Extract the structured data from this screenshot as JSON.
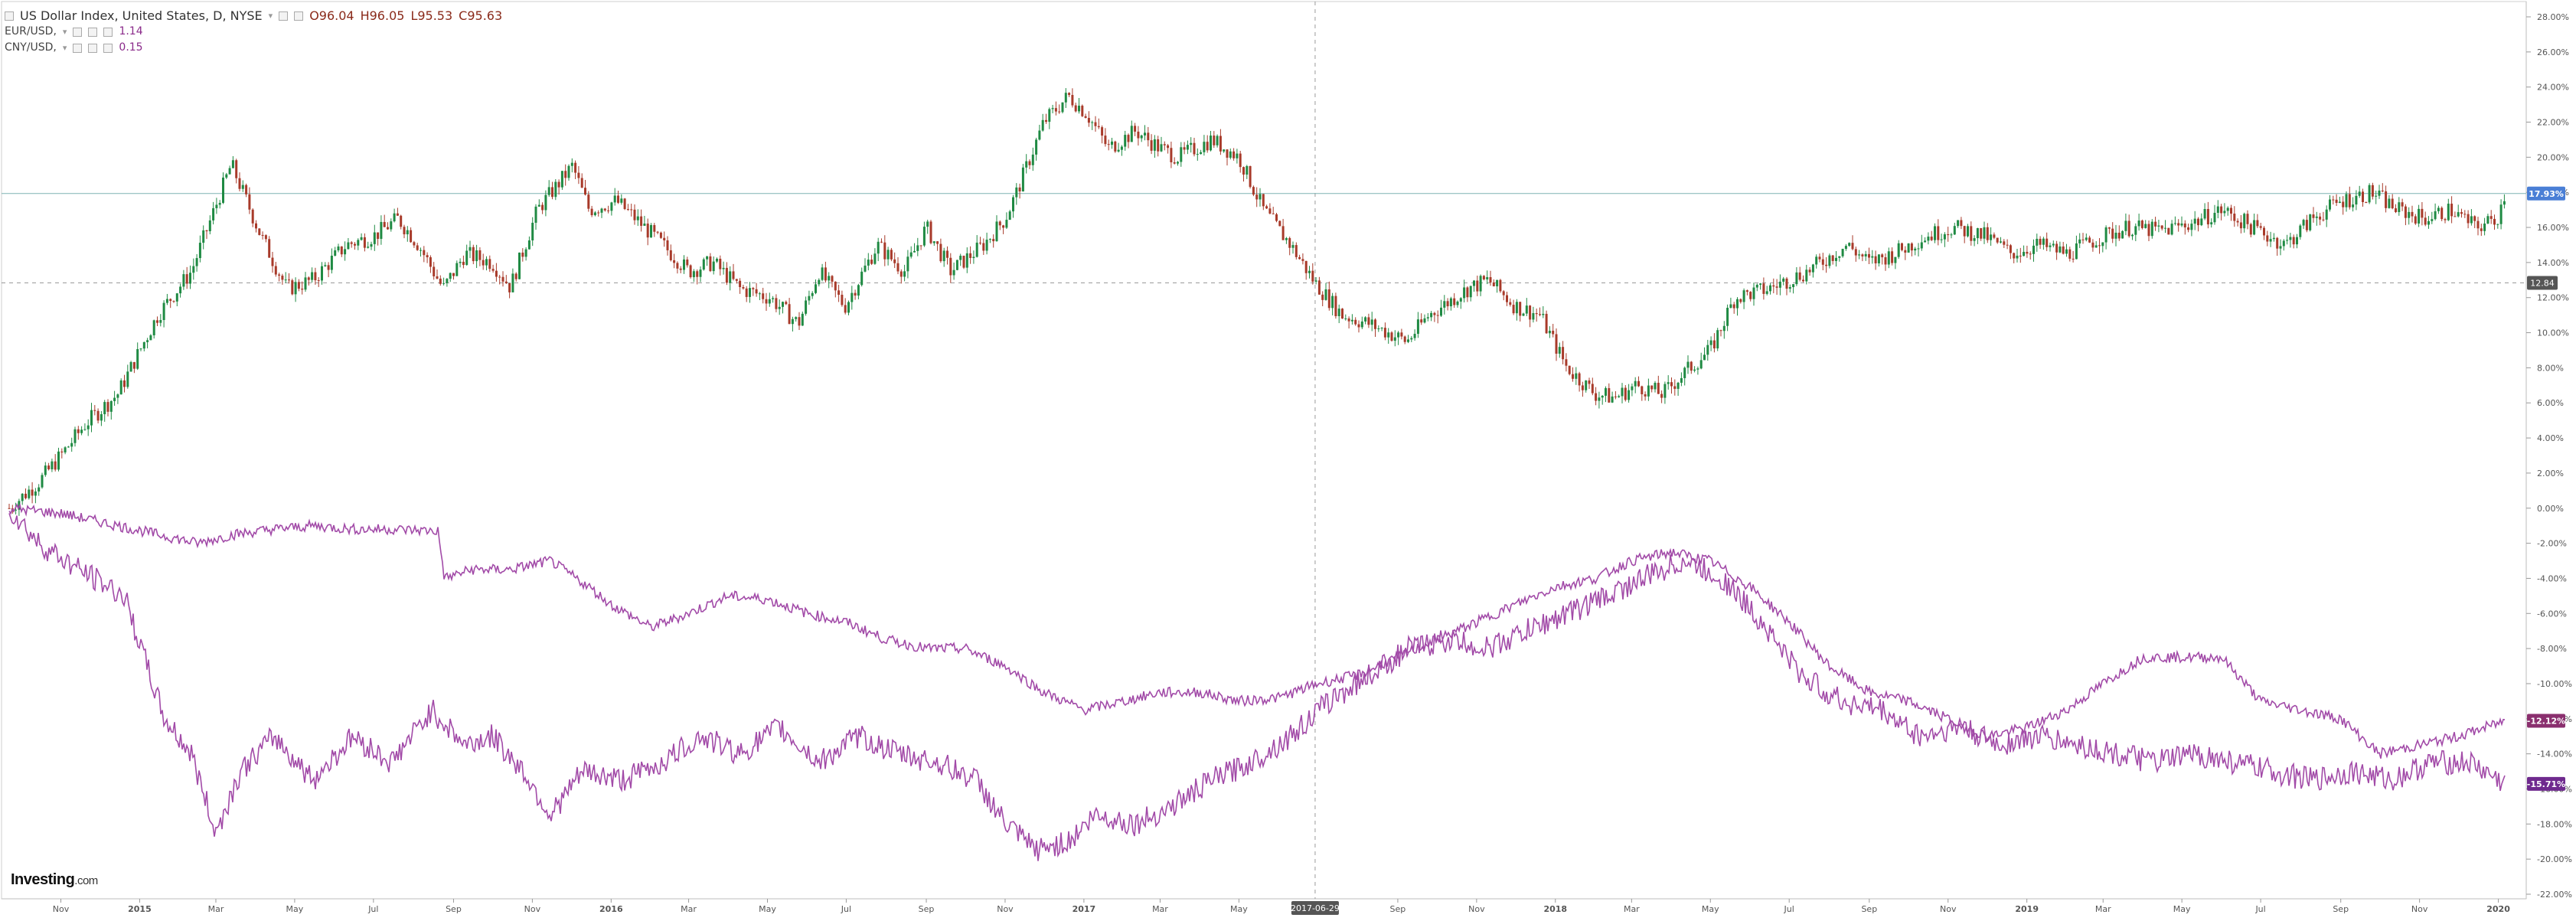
{
  "header": {
    "main_symbol": "US Dollar Index, United States, D, NYSE",
    "main_open": "O96.04",
    "main_high": "H96.05",
    "main_low": "L95.53",
    "main_close": "C95.63",
    "eur_symbol": "EUR/USD,",
    "eur_value": "1.14",
    "cny_symbol": "CNY/USD,",
    "cny_value": "0.15"
  },
  "branding": {
    "logo_text": "Investing",
    "logo_suffix": ".com"
  },
  "colors": {
    "candle_up": "#1f8a43",
    "candle_down": "#a83a2a",
    "compare_line": "#a24ba8",
    "eur_badge": "#8a2f6e",
    "cny_badge": "#6f2a8e",
    "main_badge": "#4a7fd6",
    "crosshair_badge": "#555555"
  },
  "chart_data": {
    "type": "line",
    "y_unit": "percent change",
    "ylim": [
      -22,
      28
    ],
    "y_ticks": [
      "28.00%",
      "26.00%",
      "24.00%",
      "22.00%",
      "20.00%",
      "18.00%",
      "16.00%",
      "14.00%",
      "12.00%",
      "10.00%",
      "8.00%",
      "6.00%",
      "4.00%",
      "2.00%",
      "0.00%",
      "-2.00%",
      "-4.00%",
      "-6.00%",
      "-8.00%",
      "-10.00%",
      "-12.00%",
      "-14.00%",
      "-16.00%",
      "-18.00%",
      "-20.00%",
      "-22.00%"
    ],
    "x_range": [
      "2014-09-22",
      "2020-01-06"
    ],
    "x_ticks": [
      {
        "date": "2014-11-01",
        "label": "Nov",
        "bold": false
      },
      {
        "date": "2015-01-01",
        "label": "2015",
        "bold": true
      },
      {
        "date": "2015-03-01",
        "label": "Mar",
        "bold": false
      },
      {
        "date": "2015-05-01",
        "label": "May",
        "bold": false
      },
      {
        "date": "2015-07-01",
        "label": "Jul",
        "bold": false
      },
      {
        "date": "2015-09-01",
        "label": "Sep",
        "bold": false
      },
      {
        "date": "2015-11-01",
        "label": "Nov",
        "bold": false
      },
      {
        "date": "2016-01-01",
        "label": "2016",
        "bold": true
      },
      {
        "date": "2016-03-01",
        "label": "Mar",
        "bold": false
      },
      {
        "date": "2016-05-01",
        "label": "May",
        "bold": false
      },
      {
        "date": "2016-07-01",
        "label": "Jul",
        "bold": false
      },
      {
        "date": "2016-09-01",
        "label": "Sep",
        "bold": false
      },
      {
        "date": "2016-11-01",
        "label": "Nov",
        "bold": false
      },
      {
        "date": "2017-01-01",
        "label": "2017",
        "bold": true
      },
      {
        "date": "2017-03-01",
        "label": "Mar",
        "bold": false
      },
      {
        "date": "2017-05-01",
        "label": "May",
        "bold": false
      },
      {
        "date": "2017-09-01",
        "label": "Sep",
        "bold": false
      },
      {
        "date": "2017-11-01",
        "label": "Nov",
        "bold": false
      },
      {
        "date": "2018-01-01",
        "label": "2018",
        "bold": true
      },
      {
        "date": "2018-03-01",
        "label": "Mar",
        "bold": false
      },
      {
        "date": "2018-05-01",
        "label": "May",
        "bold": false
      },
      {
        "date": "2018-07-01",
        "label": "Jul",
        "bold": false
      },
      {
        "date": "2018-09-01",
        "label": "Sep",
        "bold": false
      },
      {
        "date": "2018-11-01",
        "label": "Nov",
        "bold": false
      },
      {
        "date": "2019-01-01",
        "label": "2019",
        "bold": true
      },
      {
        "date": "2019-03-01",
        "label": "Mar",
        "bold": false
      },
      {
        "date": "2019-05-01",
        "label": "May",
        "bold": false
      },
      {
        "date": "2019-07-01",
        "label": "Jul",
        "bold": false
      },
      {
        "date": "2019-09-01",
        "label": "Sep",
        "bold": false
      },
      {
        "date": "2019-11-01",
        "label": "Nov",
        "bold": false
      },
      {
        "date": "2020-01-01",
        "label": "2020",
        "bold": true
      }
    ],
    "crosshair": {
      "date": "2017-06-29",
      "date_label": "2017-06-29",
      "value": 12.84,
      "value_label": "12.84"
    },
    "last_value_badges": [
      {
        "series": "US Dollar Index",
        "value": 17.93,
        "label": "17.93%"
      },
      {
        "series": "EUR/USD",
        "value": -12.12,
        "label": "-12.12%"
      },
      {
        "series": "CNY/USD",
        "value": -15.71,
        "label": "-15.71%"
      }
    ],
    "series": [
      {
        "name": "US Dollar Index",
        "style": "candlestick",
        "x": [
          "2014-09-22",
          "2014-10-15",
          "2014-11-01",
          "2014-11-20",
          "2014-12-15",
          "2015-01-15",
          "2015-02-10",
          "2015-03-13",
          "2015-04-05",
          "2015-04-25",
          "2015-05-15",
          "2015-06-10",
          "2015-07-01",
          "2015-07-20",
          "2015-08-05",
          "2015-08-24",
          "2015-09-10",
          "2015-10-01",
          "2015-10-15",
          "2015-11-05",
          "2015-12-02",
          "2015-12-15",
          "2016-01-05",
          "2016-01-20",
          "2016-02-10",
          "2016-03-01",
          "2016-03-20",
          "2016-04-10",
          "2016-05-03",
          "2016-05-25",
          "2016-06-10",
          "2016-06-30",
          "2016-07-25",
          "2016-08-15",
          "2016-09-01",
          "2016-09-20",
          "2016-10-15",
          "2016-11-01",
          "2016-11-10",
          "2016-12-01",
          "2016-12-20",
          "2017-01-03",
          "2017-01-20",
          "2017-02-10",
          "2017-03-01",
          "2017-03-15",
          "2017-04-10",
          "2017-05-01",
          "2017-05-20",
          "2017-06-10",
          "2017-06-29",
          "2017-07-20",
          "2017-08-10",
          "2017-09-08",
          "2017-09-25",
          "2017-10-25",
          "2017-11-10",
          "2017-12-01",
          "2017-12-20",
          "2018-01-10",
          "2018-02-01",
          "2018-02-16",
          "2018-03-05",
          "2018-03-25",
          "2018-04-15",
          "2018-05-01",
          "2018-05-20",
          "2018-06-15",
          "2018-07-15",
          "2018-08-15",
          "2018-09-01",
          "2018-09-20",
          "2018-10-15",
          "2018-11-05",
          "2018-11-30",
          "2018-12-20",
          "2019-01-10",
          "2019-02-01",
          "2019-03-01",
          "2019-03-20",
          "2019-04-15",
          "2019-05-10",
          "2019-06-01",
          "2019-06-25",
          "2019-07-20",
          "2019-08-10",
          "2019-09-01",
          "2019-09-25",
          "2019-10-15",
          "2019-11-05",
          "2019-11-25",
          "2019-12-15",
          "2019-12-31",
          "2020-01-06"
        ],
        "values": [
          0.0,
          1.5,
          3.0,
          4.8,
          6.5,
          11.0,
          13.5,
          19.6,
          15.5,
          12.5,
          13.0,
          15.0,
          15.5,
          16.5,
          15.0,
          12.5,
          14.5,
          14.0,
          12.6,
          17.0,
          19.5,
          17.0,
          17.5,
          16.5,
          15.0,
          13.5,
          14.0,
          12.5,
          12.0,
          10.5,
          13.5,
          11.5,
          15.0,
          13.5,
          16.0,
          13.5,
          15.0,
          16.5,
          18.0,
          22.0,
          23.5,
          22.5,
          20.5,
          21.5,
          20.5,
          20.0,
          21.0,
          20.0,
          17.0,
          15.0,
          12.84,
          11.0,
          10.5,
          9.5,
          11.0,
          12.5,
          13.0,
          11.5,
          11.0,
          8.0,
          6.5,
          6.3,
          7.0,
          6.5,
          8.0,
          9.0,
          12.0,
          12.5,
          13.5,
          15.0,
          14.0,
          14.5,
          15.5,
          16.0,
          15.5,
          14.5,
          15.0,
          14.5,
          15.5,
          16.0,
          15.8,
          16.3,
          17.0,
          16.0,
          15.0,
          16.5,
          17.5,
          18.0,
          17.0,
          16.5,
          17.0,
          16.0,
          16.5,
          17.93
        ]
      },
      {
        "name": "EUR/USD",
        "style": "line",
        "x": [
          "2014-09-22",
          "2014-11-01",
          "2014-12-15",
          "2015-01-15",
          "2015-02-15",
          "2015-03-15",
          "2015-04-15",
          "2015-05-15",
          "2015-06-15",
          "2015-07-15",
          "2015-08-20",
          "2015-08-25",
          "2015-09-15",
          "2015-10-15",
          "2015-11-15",
          "2015-12-15",
          "2016-01-01",
          "2016-02-01",
          "2016-03-01",
          "2016-04-01",
          "2016-05-01",
          "2016-06-01",
          "2016-07-01",
          "2016-08-01",
          "2016-09-01",
          "2016-10-01",
          "2016-11-01",
          "2016-12-01",
          "2017-01-01",
          "2017-02-01",
          "2017-03-01",
          "2017-04-01",
          "2017-05-01",
          "2017-06-01",
          "2017-07-01",
          "2017-08-01",
          "2017-09-01",
          "2017-10-01",
          "2017-11-01",
          "2017-12-01",
          "2018-01-01",
          "2018-02-01",
          "2018-03-01",
          "2018-04-01",
          "2018-05-01",
          "2018-06-01",
          "2018-07-01",
          "2018-08-01",
          "2018-09-01",
          "2018-10-01",
          "2018-11-01",
          "2018-12-01",
          "2019-01-01",
          "2019-02-01",
          "2019-03-01",
          "2019-04-01",
          "2019-05-01",
          "2019-06-01",
          "2019-07-01",
          "2019-08-01",
          "2019-09-01",
          "2019-10-01",
          "2019-11-01",
          "2019-12-01",
          "2020-01-06"
        ],
        "values": [
          0.0,
          -0.3,
          -1.0,
          -1.5,
          -2.0,
          -1.5,
          -1.2,
          -1.0,
          -1.2,
          -1.2,
          -1.3,
          -4.0,
          -3.5,
          -3.5,
          -3.0,
          -4.5,
          -5.5,
          -6.8,
          -6.0,
          -5.0,
          -5.2,
          -6.0,
          -6.5,
          -7.5,
          -8.0,
          -8.0,
          -9.0,
          -10.5,
          -11.5,
          -11.0,
          -10.5,
          -10.5,
          -11.0,
          -10.8,
          -10.0,
          -9.5,
          -8.5,
          -7.5,
          -6.5,
          -5.5,
          -4.5,
          -4.0,
          -3.0,
          -2.5,
          -3.0,
          -4.5,
          -6.5,
          -9.0,
          -10.5,
          -11.0,
          -12.0,
          -13.0,
          -12.5,
          -11.5,
          -10.0,
          -8.5,
          -8.5,
          -8.5,
          -11.0,
          -11.5,
          -12.0,
          -14.0,
          -13.5,
          -13.0,
          -12.12
        ]
      },
      {
        "name": "CNY/USD",
        "style": "line",
        "x": [
          "2014-09-22",
          "2014-10-15",
          "2014-11-15",
          "2014-12-20",
          "2015-01-20",
          "2015-02-10",
          "2015-03-01",
          "2015-03-20",
          "2015-04-15",
          "2015-05-15",
          "2015-06-15",
          "2015-07-15",
          "2015-08-15",
          "2015-09-10",
          "2015-10-01",
          "2015-10-25",
          "2015-11-15",
          "2015-12-10",
          "2016-01-10",
          "2016-02-10",
          "2016-03-10",
          "2016-04-10",
          "2016-05-10",
          "2016-06-10",
          "2016-07-10",
          "2016-08-10",
          "2016-09-10",
          "2016-10-10",
          "2016-11-01",
          "2016-11-25",
          "2016-12-20",
          "2017-01-10",
          "2017-02-10",
          "2017-03-10",
          "2017-04-10",
          "2017-05-10",
          "2017-06-10",
          "2017-07-10",
          "2017-08-10",
          "2017-09-10",
          "2017-10-10",
          "2017-11-10",
          "2017-12-10",
          "2018-01-10",
          "2018-02-10",
          "2018-03-10",
          "2018-04-10",
          "2018-05-10",
          "2018-06-10",
          "2018-07-10",
          "2018-08-10",
          "2018-09-10",
          "2018-10-10",
          "2018-11-10",
          "2018-12-10",
          "2019-01-10",
          "2019-02-10",
          "2019-03-10",
          "2019-04-10",
          "2019-05-10",
          "2019-06-10",
          "2019-07-10",
          "2019-08-10",
          "2019-09-10",
          "2019-10-10",
          "2019-11-10",
          "2019-12-10",
          "2020-01-06"
        ],
        "values": [
          0.0,
          -2.0,
          -3.5,
          -5.0,
          -12.0,
          -14.0,
          -18.5,
          -15.0,
          -13.0,
          -15.5,
          -13.0,
          -14.5,
          -11.5,
          -13.5,
          -13.0,
          -15.0,
          -17.5,
          -15.0,
          -15.5,
          -14.5,
          -13.0,
          -14.0,
          -12.5,
          -14.5,
          -13.0,
          -14.0,
          -14.5,
          -15.5,
          -18.0,
          -19.5,
          -19.0,
          -17.5,
          -18.0,
          -17.0,
          -15.5,
          -14.5,
          -13.0,
          -11.0,
          -9.5,
          -8.0,
          -7.5,
          -8.0,
          -7.0,
          -6.0,
          -5.0,
          -4.0,
          -3.0,
          -4.0,
          -6.5,
          -9.5,
          -11.0,
          -11.5,
          -13.0,
          -12.5,
          -13.5,
          -13.0,
          -13.5,
          -14.0,
          -14.5,
          -14.0,
          -14.5,
          -15.0,
          -15.5,
          -15.0,
          -15.5,
          -14.5,
          -14.5,
          -15.71
        ]
      }
    ]
  }
}
